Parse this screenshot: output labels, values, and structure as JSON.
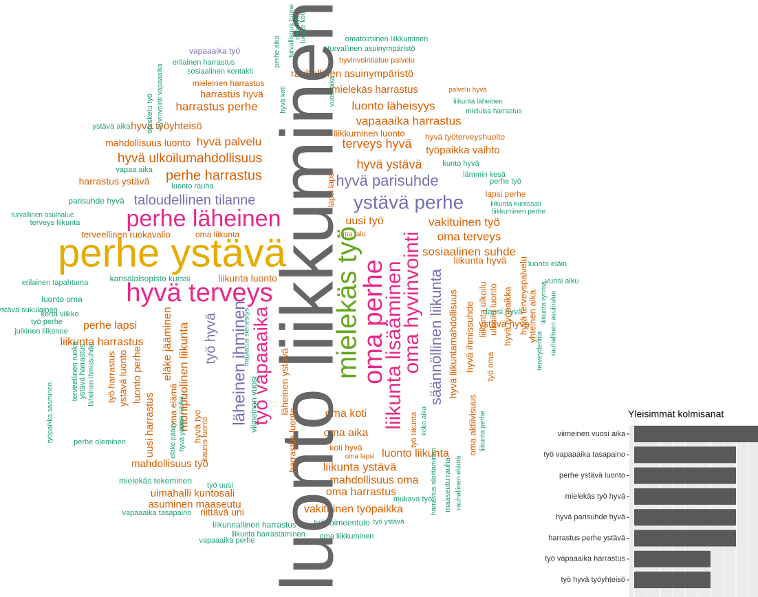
{
  "word_cloud": {
    "words": [
      "omatoiminen liikkuminen",
      "turvallinen asuinympäristö",
      "vapaaaika työ",
      "hyvinvointialue palvelu",
      "erilainen harrastus",
      "sosiaalinen kontakti",
      "rauhallinen asuinympäristö",
      "mieleinen harrastus",
      "harrastus hyvä",
      "mielekäs harrastus",
      "palvelu hyvä",
      "luonto läheisyys",
      "liikunta läheinen",
      "mieluisa harrastus",
      "harrastus perhe",
      "ystävä aika",
      "hyvä työyhteisö",
      "vapaaaika harrastus",
      "liikkuminen luonto",
      "hyvä työterveyshuolto",
      "mahdollisuus luonto",
      "hyvä palvelu",
      "terveys hyvä",
      "työpaikka vaihto",
      "hyvä ulkoilumahdollisuus",
      "hyvä ystävä",
      "kunto hyvä",
      "vapaa aika",
      "lämmin kesä",
      "perhe harrastus",
      "harrastus ystävä",
      "luonto rauha",
      "perhe työ",
      "lapsi perhe",
      "parisuhde hyvä",
      "liikunta kuntosali",
      "liikkuminen perhe",
      "turvallinen asuinalue",
      "terveys liikunta",
      "uusi työ",
      "vakituinen työ",
      "terveellinen ruokavalio",
      "oma liikunta",
      "oma talo",
      "oma terveys",
      "sosiaalinen suhde",
      "liikunta hyvä",
      "luonto eläin",
      "erilainen tapahtuma",
      "kansalaisopisto kurssi",
      "liikunta luonto",
      "vuosi alku",
      "luonto oma",
      "ystävä sukulainen",
      "kerta viikko",
      "työ perhe",
      "perhe lapsi",
      "julkinen liikenne",
      "liikunta harrastus",
      "ystävä hyvä",
      "lapsi hyvä",
      "perhe oleminen",
      "oma koti",
      "oma aika",
      "koti hyvä",
      "oma lapsi",
      "luonto liikunta",
      "mahdollisuus työ",
      "liikunta ystävä",
      "mielekäs tekeminen",
      "työ uusi",
      "mahdollisuus oma",
      "uimahalli kuntosali",
      "oma harrastus",
      "asuminen maaseutu",
      "mukava työ",
      "vapaaaika tasapaino",
      "riittävä uni",
      "vakituinen työpaikka",
      "liikunnallinen harrastus",
      "työ toimeentulo",
      "työ ystävä",
      "liikunta harrastaminen",
      "oma liikkuminen",
      "vapaaaika perhe",
      "luonto liikkuminen",
      "perhe ystävä",
      "hyvä terveys",
      "perhe läheinen",
      "ystävä perhe",
      "hyvä parisuhde",
      "taloudellinen tilanne",
      "mielekäs työ",
      "oma perhe",
      "oma hyvinvointi",
      "liikunta lisääminen",
      "säännöllinen liikunta",
      "työ vapaaaika",
      "läheinen ihminen",
      "työ hyvä",
      "monipuolinen liikunta",
      "eläke jääminen",
      "oma elämä",
      "uusi harrastus",
      "luonto perhe",
      "ystävä luonto",
      "työ harrastus",
      "terveellinen ruoka",
      "ystävä harrastus",
      "läheinen ihmissuhde",
      "työpaikka saaminen",
      "hyvä työ",
      "kaunis luonto",
      "viimeinen vuosi",
      "majastus sienestys",
      "harrastus luonto",
      "läheinen ystävä",
      "hyvä liikuntamahdollisuus",
      "hyvä ihmissuhde",
      "liikunta ulkoilu",
      "ulkoilu luonto",
      "hyvä työpaikka",
      "hyvä terveyspalvelu",
      "yhteinen aika",
      "liikunta ryhmä",
      "rauhallinen asuinalue",
      "oma aktiivisuus",
      "työ oma",
      "liikunta perhe",
      "hyvinvointi vapaaaika",
      "opiskelu työ",
      "hyvä koti",
      "perhe aika",
      "turvallisuus tunne",
      "oma työ",
      "luonto koti",
      "vuosi aika",
      "lapsi lapsi",
      "työ liikunta",
      "koko aika",
      "harrastus aloittaminen",
      "maaseutu rauha",
      "rauhallinen elämä",
      "terveydentila",
      "hyvä yöuni",
      "eläke pääsy",
      "oma rauha"
    ]
  },
  "chart_data": {
    "type": "bar",
    "orientation": "horizontal",
    "title": "Yleisimmät kolmisanat",
    "categories": [
      "viimeinen vuosi aika",
      "työ vapaaaika tasapaino",
      "perhe ystävä luonto",
      "mielekäs työ hyvä",
      "hyvä parisuhde hyvä",
      "harrastus perhe ystävä",
      "työ vapaaaika harrastus",
      "työ hyvä työyhteisö"
    ],
    "values": [
      5,
      4,
      4,
      4,
      4,
      4,
      3,
      3
    ],
    "color": "#595959",
    "grid": true
  }
}
